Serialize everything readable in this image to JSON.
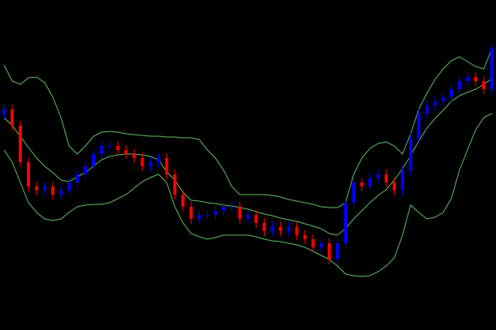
{
  "chart_data": {
    "type": "candlestick",
    "x": [
      1,
      2,
      3,
      4,
      5,
      6,
      7,
      8,
      9,
      10,
      11,
      12,
      13,
      14,
      15,
      16,
      17,
      18,
      19,
      20,
      21,
      22,
      23,
      24,
      25,
      26,
      27,
      28,
      29,
      30,
      31,
      32,
      33,
      34,
      35,
      36,
      37,
      38,
      39,
      40,
      41,
      42,
      43,
      44,
      45,
      46,
      47,
      48,
      49,
      50,
      51,
      52,
      53,
      54,
      55,
      56,
      57,
      58,
      59,
      60,
      61
    ],
    "open": [
      265,
      272,
      252,
      207,
      177,
      172,
      177,
      167,
      172,
      182,
      192,
      202,
      217,
      227,
      227,
      222,
      217,
      212,
      202,
      207,
      212,
      192,
      167,
      152,
      137,
      142,
      142,
      147,
      152,
      152,
      137,
      142,
      132,
      122,
      127,
      122,
      127,
      117,
      112,
      102,
      107,
      87,
      107,
      157,
      182,
      177,
      187,
      192,
      182,
      172,
      197,
      237,
      267,
      277,
      282,
      287,
      297,
      307,
      312,
      307,
      297
    ],
    "high": [
      278,
      278,
      258,
      213,
      183,
      183,
      183,
      178,
      188,
      198,
      208,
      223,
      233,
      233,
      233,
      228,
      223,
      218,
      213,
      218,
      218,
      198,
      173,
      158,
      148,
      148,
      153,
      158,
      158,
      158,
      148,
      148,
      138,
      133,
      133,
      133,
      133,
      123,
      118,
      113,
      113,
      113,
      163,
      188,
      188,
      193,
      198,
      198,
      188,
      203,
      243,
      273,
      283,
      288,
      293,
      303,
      313,
      318,
      318,
      313,
      353
    ],
    "low": [
      259,
      246,
      201,
      171,
      166,
      166,
      161,
      161,
      166,
      176,
      186,
      196,
      211,
      221,
      216,
      211,
      206,
      196,
      196,
      201,
      186,
      161,
      146,
      131,
      131,
      136,
      136,
      141,
      146,
      131,
      131,
      126,
      116,
      116,
      116,
      116,
      111,
      106,
      96,
      96,
      81,
      81,
      101,
      151,
      171,
      171,
      181,
      176,
      166,
      166,
      191,
      231,
      261,
      271,
      276,
      281,
      291,
      301,
      301,
      291,
      291
    ],
    "close": [
      272,
      252,
      207,
      177,
      172,
      177,
      167,
      172,
      182,
      192,
      202,
      217,
      227,
      227,
      222,
      217,
      212,
      202,
      207,
      212,
      192,
      167,
      152,
      137,
      142,
      142,
      147,
      152,
      152,
      137,
      142,
      132,
      122,
      127,
      122,
      127,
      117,
      112,
      102,
      107,
      87,
      107,
      157,
      182,
      177,
      187,
      192,
      182,
      172,
      197,
      237,
      267,
      277,
      282,
      287,
      297,
      307,
      312,
      307,
      297,
      347
    ],
    "up_color": "#0000ff",
    "down_color": "#ff0000",
    "series": [
      {
        "type": "line",
        "color": "#5fbf5f",
        "values": [
          327,
          307,
          303,
          311,
          312,
          305,
          287,
          262,
          227,
          217,
          227,
          239,
          244,
          245,
          244,
          242,
          241,
          240,
          239,
          239,
          238,
          238,
          237,
          237,
          235,
          222,
          212,
          197,
          177,
          167,
          167,
          167,
          167,
          166,
          164,
          161,
          159,
          157,
          155,
          152,
          151,
          151,
          157,
          192,
          212,
          224,
          230,
          232,
          227,
          217,
          242,
          272,
          292,
          309,
          322,
          332,
          337,
          331,
          325,
          322,
          347
        ]
      },
      {
        "type": "line",
        "color": "#5fbf5f",
        "values": [
          262,
          252,
          239,
          225,
          212,
          202,
          194,
          185,
          183,
          189,
          194,
          202,
          210,
          214,
          216,
          217,
          217,
          216,
          214,
          210,
          195,
          185,
          170,
          160,
          159,
          157,
          156,
          154,
          153,
          151,
          149,
          146,
          143,
          141,
          138,
          136,
          134,
          131,
          128,
          125,
          119,
          117,
          125,
          137,
          147,
          157,
          166,
          173,
          185,
          199,
          215,
          233,
          249,
          261,
          271,
          282,
          289,
          293,
          297,
          303,
          310
        ]
      },
      {
        "type": "line",
        "color": "#5fbf5f",
        "values": [
          222,
          207,
          182,
          157,
          145,
          137,
          135,
          137,
          145,
          152,
          154,
          155,
          155,
          157,
          162,
          167,
          175,
          183,
          188,
          192,
          182,
          152,
          132,
          119,
          115,
          112,
          114,
          117,
          117,
          117,
          117,
          115,
          112,
          110,
          109,
          107,
          105,
          102,
          97,
          92,
          87,
          79,
          69,
          67,
          66,
          67,
          72,
          79,
          89,
          117,
          154,
          145,
          137,
          139,
          145,
          162,
          197,
          222,
          247,
          262,
          267
        ]
      }
    ],
    "xlim": [
      0.5,
      61.5
    ],
    "ylim": [
      0,
      407
    ]
  }
}
